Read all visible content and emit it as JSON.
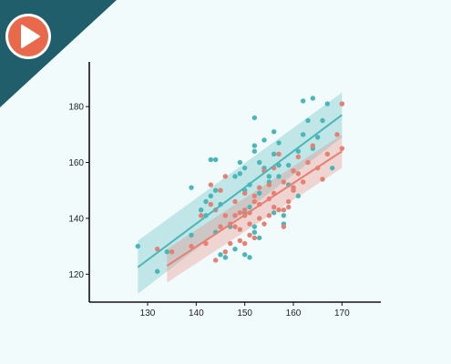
{
  "ui": {
    "play_button": {
      "icon": "play-icon",
      "bg": "#e9694a",
      "ring": "#ffffff"
    },
    "corner_banner": {
      "color": "#1f5e6a"
    }
  },
  "chart_data": {
    "type": "scatter",
    "xlim": [
      118,
      178
    ],
    "ylim": [
      110,
      196
    ],
    "x_ticks": [
      130,
      140,
      150,
      160,
      170
    ],
    "y_ticks": [
      120,
      140,
      160,
      180
    ],
    "grid": false,
    "series": [
      {
        "color": "#4bb6b8",
        "points": [
          [
            128,
            130
          ],
          [
            132,
            121
          ],
          [
            134,
            128
          ],
          [
            139,
            134
          ],
          [
            139,
            151
          ],
          [
            141,
            143
          ],
          [
            142,
            141
          ],
          [
            142,
            146
          ],
          [
            143,
            148
          ],
          [
            143,
            161
          ],
          [
            144,
            150
          ],
          [
            144,
            161
          ],
          [
            144,
            135
          ],
          [
            145,
            127
          ],
          [
            145,
            145
          ],
          [
            146,
            126
          ],
          [
            147,
            137
          ],
          [
            148,
            129
          ],
          [
            148,
            155
          ],
          [
            149,
            156
          ],
          [
            149,
            160
          ],
          [
            150,
            158
          ],
          [
            150,
            150
          ],
          [
            150,
            142
          ],
          [
            150,
            127
          ],
          [
            151,
            126
          ],
          [
            151,
            144
          ],
          [
            151,
            152
          ],
          [
            152,
            164
          ],
          [
            152,
            166
          ],
          [
            152,
            137
          ],
          [
            152,
            135
          ],
          [
            152,
            176
          ],
          [
            153,
            160
          ],
          [
            153,
            149
          ],
          [
            153,
            133
          ],
          [
            154,
            168
          ],
          [
            154,
            158
          ],
          [
            155,
            155
          ],
          [
            155,
            153
          ],
          [
            156,
            171
          ],
          [
            156,
            163
          ],
          [
            156,
            142
          ],
          [
            157,
            167
          ],
          [
            157,
            159
          ],
          [
            157,
            155
          ],
          [
            158,
            138
          ],
          [
            158,
            141
          ],
          [
            159,
            152
          ],
          [
            159,
            159
          ],
          [
            160,
            157
          ],
          [
            160,
            151
          ],
          [
            161,
            164
          ],
          [
            161,
            148
          ],
          [
            162,
            170
          ],
          [
            162,
            182
          ],
          [
            163,
            175
          ],
          [
            164,
            183
          ],
          [
            164,
            165
          ],
          [
            165,
            169
          ],
          [
            166,
            175
          ],
          [
            167,
            181
          ],
          [
            168,
            158
          ],
          [
            170,
            181
          ]
        ],
        "fit": {
          "x": [
            128,
            170
          ],
          "y": [
            122.5,
            177
          ],
          "ci_low": [
            113,
            169
          ],
          "ci_high": [
            132,
            185
          ]
        }
      },
      {
        "color": "#e77f72",
        "points": [
          [
            132,
            129
          ],
          [
            135,
            128
          ],
          [
            139,
            130
          ],
          [
            141,
            141
          ],
          [
            142,
            131
          ],
          [
            143,
            145
          ],
          [
            143,
            152
          ],
          [
            144,
            125
          ],
          [
            144,
            143
          ],
          [
            145,
            137
          ],
          [
            145,
            150
          ],
          [
            146,
            128
          ],
          [
            146,
            141
          ],
          [
            146,
            155
          ],
          [
            147,
            138
          ],
          [
            147,
            131
          ],
          [
            148,
            141
          ],
          [
            148,
            137
          ],
          [
            148,
            146
          ],
          [
            149,
            132
          ],
          [
            149,
            136
          ],
          [
            149,
            142
          ],
          [
            150,
            131
          ],
          [
            150,
            143
          ],
          [
            150,
            141
          ],
          [
            150,
            149
          ],
          [
            151,
            134
          ],
          [
            151,
            138
          ],
          [
            151,
            142
          ],
          [
            152,
            148
          ],
          [
            152,
            133
          ],
          [
            152,
            146
          ],
          [
            153,
            151
          ],
          [
            153,
            145
          ],
          [
            153,
            140
          ],
          [
            154,
            157
          ],
          [
            154,
            138
          ],
          [
            155,
            147
          ],
          [
            155,
            141
          ],
          [
            155,
            152
          ],
          [
            156,
            144
          ],
          [
            156,
            149
          ],
          [
            156,
            158
          ],
          [
            157,
            143
          ],
          [
            157,
            163
          ],
          [
            158,
            153
          ],
          [
            158,
            143
          ],
          [
            158,
            137
          ],
          [
            159,
            144
          ],
          [
            159,
            146
          ],
          [
            160,
            157
          ],
          [
            160,
            150
          ],
          [
            160,
            151
          ],
          [
            161,
            156
          ],
          [
            161,
            162
          ],
          [
            162,
            153
          ],
          [
            163,
            160
          ],
          [
            164,
            166
          ],
          [
            165,
            158
          ],
          [
            166,
            154
          ],
          [
            167,
            163
          ],
          [
            169,
            170
          ],
          [
            170,
            165
          ],
          [
            170,
            181
          ]
        ],
        "fit": {
          "x": [
            134,
            170
          ],
          "y": [
            123,
            164
          ],
          "ci_low": [
            117,
            158
          ],
          "ci_high": [
            129,
            170
          ]
        }
      }
    ]
  }
}
